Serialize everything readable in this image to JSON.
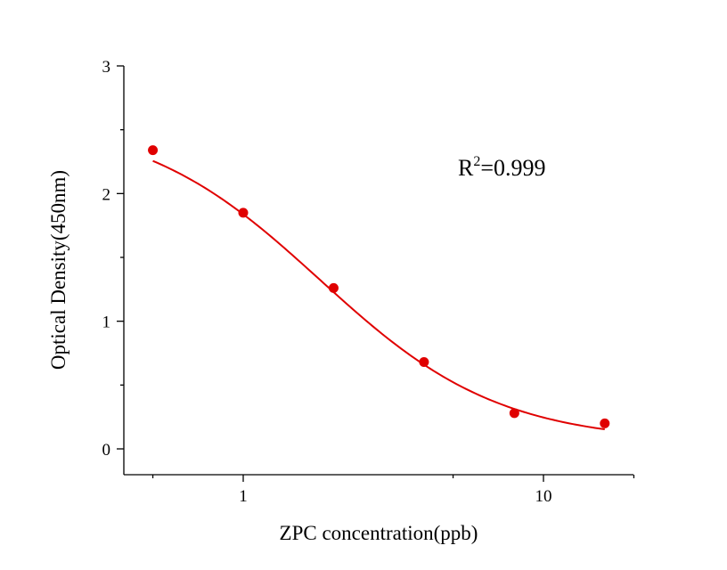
{
  "chart_data": {
    "type": "scatter",
    "title": "",
    "xlabel": "ZPC concentration(ppb)",
    "ylabel": "Optical Density(450nm)",
    "xscale": "log",
    "xlim": [
      0.4,
      20
    ],
    "ylim": [
      -0.2,
      3
    ],
    "xticks": [
      {
        "value": 1,
        "label": "1"
      },
      {
        "value": 10,
        "label": "10"
      }
    ],
    "yticks": [
      {
        "value": 0,
        "label": "0"
      },
      {
        "value": 1,
        "label": "1"
      },
      {
        "value": 2,
        "label": "2"
      },
      {
        "value": 3,
        "label": "3"
      }
    ],
    "grid": false,
    "legend": "none",
    "series": [
      {
        "points": [
          {
            "x": 0.5,
            "y": 2.34
          },
          {
            "x": 1,
            "y": 1.85
          },
          {
            "x": 2,
            "y": 1.26
          },
          {
            "x": 4,
            "y": 0.68
          },
          {
            "x": 8,
            "y": 0.28
          },
          {
            "x": 16,
            "y": 0.2
          }
        ],
        "fit": "4PL",
        "color": "#e00000"
      }
    ],
    "annotations": [
      {
        "text": "R",
        "superscript": "2",
        "suffix": "=0.999"
      }
    ]
  }
}
